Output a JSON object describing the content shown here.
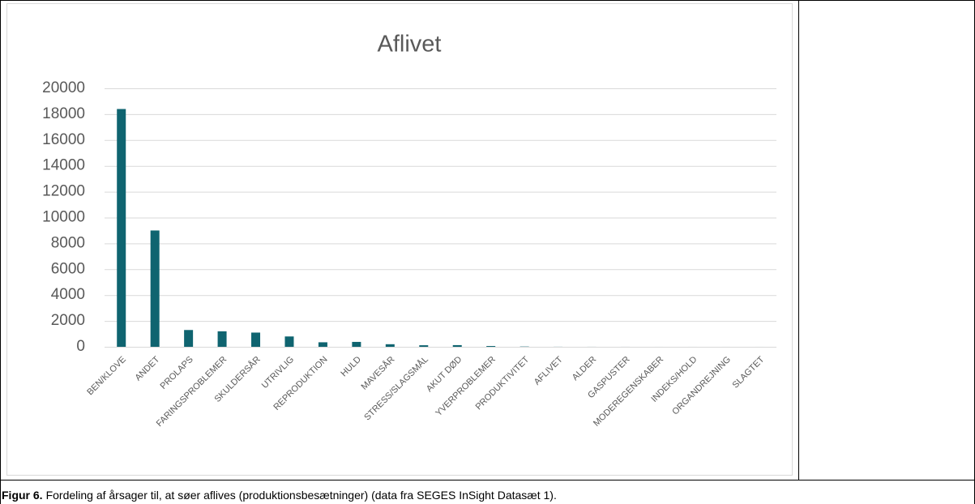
{
  "chart_data": {
    "type": "bar",
    "title": "Aflivet",
    "categories": [
      "BEN/KLOVE",
      "ANDET",
      "PROLAPS",
      "FARINGSPROBLEMER",
      "SKULDERSÅR",
      "UTRIVLIG",
      "REPRODUKTION",
      "HULD",
      "MAVESÅR",
      "STRESS/SLAGSMÅL",
      "AKUT DØD",
      "YVERPROBLEMER",
      "PRODUKTIVITET",
      "AFLIVET",
      "ALDER",
      "GASPUSTER",
      "MODEREGENSKABER",
      "INDEKS/HOLD",
      "ORGANDREJNING",
      "SLAGTET"
    ],
    "values": [
      18400,
      9000,
      1300,
      1200,
      1100,
      800,
      350,
      380,
      200,
      120,
      130,
      60,
      20,
      5,
      3,
      2,
      1,
      1,
      1,
      1
    ],
    "color": "#0f6470",
    "ylim": [
      0,
      20000
    ],
    "yticks": [
      0,
      2000,
      4000,
      6000,
      8000,
      10000,
      12000,
      14000,
      16000,
      18000,
      20000
    ],
    "grid": true
  },
  "caption": {
    "label": "Figur 6.",
    "text": "Fordeling af årsager til, at søer aflives (produktionsbesætninger) (data fra SEGES InSight Datasæt 1)."
  }
}
